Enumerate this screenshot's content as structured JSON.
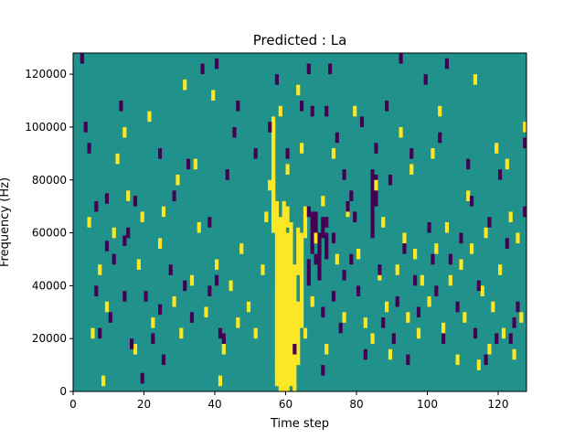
{
  "chart_data": {
    "type": "heatmap",
    "title": "Predicted : La",
    "xlabel": "Time step",
    "ylabel": "Frequency (Hz)",
    "xlim": [
      0,
      128
    ],
    "ylim": [
      0,
      128000
    ],
    "cols": 128,
    "rows": 128,
    "row_height_hz": 1000,
    "grid": false,
    "legend": "none",
    "x_ticks": [
      0,
      20,
      40,
      60,
      80,
      100,
      120
    ],
    "y_ticks": [
      0,
      20000,
      40000,
      60000,
      80000,
      100000,
      120000
    ],
    "palette": {
      "background": "#21918c",
      "low": "#440154",
      "high": "#fde725"
    },
    "cell_levels": "background = middle value, low = minimum, high = maximum",
    "low_cells": [
      [
        2,
        124
      ],
      [
        3,
        98
      ],
      [
        4,
        90
      ],
      [
        6,
        68
      ],
      [
        6,
        36
      ],
      [
        7,
        20
      ],
      [
        9,
        71
      ],
      [
        9,
        53
      ],
      [
        10,
        26
      ],
      [
        11,
        48
      ],
      [
        13,
        106
      ],
      [
        14,
        55
      ],
      [
        14,
        34
      ],
      [
        15,
        58
      ],
      [
        16,
        16
      ],
      [
        17,
        70
      ],
      [
        19,
        3
      ],
      [
        20,
        34
      ],
      [
        22,
        18
      ],
      [
        24,
        88
      ],
      [
        24,
        29
      ],
      [
        25,
        10
      ],
      [
        27,
        44
      ],
      [
        28,
        72
      ],
      [
        31,
        38
      ],
      [
        32,
        84
      ],
      [
        33,
        26
      ],
      [
        36,
        120
      ],
      [
        38,
        62
      ],
      [
        38,
        36
      ],
      [
        40,
        122
      ],
      [
        40,
        40
      ],
      [
        41,
        20
      ],
      [
        42,
        18
      ],
      [
        43,
        80
      ],
      [
        45,
        96
      ],
      [
        46,
        106
      ],
      [
        51,
        88
      ],
      [
        55,
        98
      ],
      [
        57,
        116
      ],
      [
        60,
        88
      ],
      [
        62,
        14
      ],
      [
        64,
        106
      ],
      [
        66,
        120
      ],
      [
        66,
        66
      ],
      [
        67,
        104
      ],
      [
        68,
        48
      ],
      [
        69,
        56
      ],
      [
        70,
        6
      ],
      [
        70,
        28
      ],
      [
        71,
        62
      ],
      [
        71,
        104
      ],
      [
        72,
        120
      ],
      [
        73,
        56
      ],
      [
        73,
        34
      ],
      [
        74,
        94
      ],
      [
        75,
        22
      ],
      [
        76,
        80
      ],
      [
        76,
        42
      ],
      [
        77,
        68
      ],
      [
        78,
        72
      ],
      [
        78,
        48
      ],
      [
        79,
        64
      ],
      [
        80,
        36
      ],
      [
        81,
        100
      ],
      [
        82,
        12
      ],
      [
        84,
        58
      ],
      [
        85,
        90
      ],
      [
        86,
        44
      ],
      [
        87,
        24
      ],
      [
        88,
        106
      ],
      [
        89,
        78
      ],
      [
        90,
        18
      ],
      [
        91,
        32
      ],
      [
        92,
        124
      ],
      [
        93,
        52
      ],
      [
        94,
        10
      ],
      [
        95,
        88
      ],
      [
        96,
        40
      ],
      [
        97,
        28
      ],
      [
        99,
        116
      ],
      [
        100,
        60
      ],
      [
        101,
        48
      ],
      [
        102,
        36
      ],
      [
        103,
        94
      ],
      [
        104,
        18
      ],
      [
        105,
        122
      ],
      [
        106,
        48
      ],
      [
        108,
        30
      ],
      [
        109,
        56
      ],
      [
        111,
        84
      ],
      [
        112,
        70
      ],
      [
        113,
        20
      ],
      [
        114,
        38
      ],
      [
        116,
        10
      ],
      [
        117,
        62
      ],
      [
        119,
        18
      ],
      [
        120,
        80
      ],
      [
        122,
        54
      ],
      [
        123,
        18
      ],
      [
        124,
        24
      ],
      [
        125,
        30
      ],
      [
        127,
        92
      ],
      [
        127,
        66
      ]
    ],
    "high_cells": [
      [
        4,
        62
      ],
      [
        5,
        20
      ],
      [
        7,
        44
      ],
      [
        8,
        2
      ],
      [
        9,
        30
      ],
      [
        11,
        58
      ],
      [
        12,
        86
      ],
      [
        14,
        96
      ],
      [
        15,
        72
      ],
      [
        17,
        14
      ],
      [
        18,
        46
      ],
      [
        19,
        64
      ],
      [
        21,
        102
      ],
      [
        22,
        24
      ],
      [
        24,
        54
      ],
      [
        25,
        66
      ],
      [
        28,
        32
      ],
      [
        29,
        78
      ],
      [
        30,
        20
      ],
      [
        31,
        114
      ],
      [
        33,
        40
      ],
      [
        34,
        84
      ],
      [
        35,
        60
      ],
      [
        37,
        28
      ],
      [
        39,
        110
      ],
      [
        40,
        46
      ],
      [
        41,
        2
      ],
      [
        42,
        14
      ],
      [
        44,
        38
      ],
      [
        46,
        24
      ],
      [
        47,
        52
      ],
      [
        49,
        30
      ],
      [
        51,
        20
      ],
      [
        53,
        44
      ],
      [
        54,
        64
      ],
      [
        55,
        76
      ],
      [
        57,
        8
      ],
      [
        58,
        104
      ],
      [
        60,
        82
      ],
      [
        61,
        40
      ],
      [
        63,
        112
      ],
      [
        64,
        90
      ],
      [
        65,
        20
      ],
      [
        67,
        32
      ],
      [
        68,
        56
      ],
      [
        70,
        70
      ],
      [
        71,
        14
      ],
      [
        73,
        88
      ],
      [
        74,
        48
      ],
      [
        76,
        26
      ],
      [
        77,
        66
      ],
      [
        79,
        104
      ],
      [
        80,
        50
      ],
      [
        82,
        24
      ],
      [
        84,
        18
      ],
      [
        85,
        76
      ],
      [
        86,
        42
      ],
      [
        87,
        62
      ],
      [
        88,
        30
      ],
      [
        89,
        12
      ],
      [
        91,
        44
      ],
      [
        92,
        96
      ],
      [
        93,
        56
      ],
      [
        94,
        26
      ],
      [
        95,
        82
      ],
      [
        96,
        50
      ],
      [
        97,
        20
      ],
      [
        98,
        40
      ],
      [
        100,
        32
      ],
      [
        101,
        88
      ],
      [
        102,
        52
      ],
      [
        103,
        104
      ],
      [
        104,
        22
      ],
      [
        105,
        60
      ],
      [
        106,
        40
      ],
      [
        108,
        10
      ],
      [
        109,
        46
      ],
      [
        110,
        26
      ],
      [
        111,
        72
      ],
      [
        112,
        52
      ],
      [
        113,
        116
      ],
      [
        114,
        8
      ],
      [
        115,
        36
      ],
      [
        116,
        58
      ],
      [
        117,
        14
      ],
      [
        118,
        30
      ],
      [
        119,
        90
      ],
      [
        120,
        44
      ],
      [
        121,
        20
      ],
      [
        122,
        84
      ],
      [
        123,
        64
      ],
      [
        124,
        12
      ],
      [
        125,
        56
      ],
      [
        126,
        26
      ],
      [
        127,
        98
      ]
    ],
    "high_bands": [
      [
        56,
        60,
        44
      ],
      [
        56,
        64,
        38
      ],
      [
        57,
        2,
        70
      ],
      [
        57,
        4,
        34
      ],
      [
        58,
        0,
        66
      ],
      [
        58,
        6,
        40
      ],
      [
        59,
        0,
        72
      ],
      [
        59,
        30,
        38
      ],
      [
        60,
        0,
        60
      ],
      [
        60,
        62,
        8
      ],
      [
        61,
        2,
        62
      ],
      [
        62,
        0,
        48
      ],
      [
        63,
        10,
        24
      ],
      [
        63,
        44,
        18
      ],
      [
        64,
        24,
        36
      ],
      [
        65,
        58,
        12
      ]
    ],
    "low_bands": [
      [
        66,
        40,
        10
      ],
      [
        67,
        52,
        16
      ],
      [
        68,
        60,
        8
      ],
      [
        69,
        42,
        14
      ],
      [
        70,
        58,
        8
      ],
      [
        71,
        50,
        10
      ],
      [
        84,
        60,
        24
      ],
      [
        85,
        70,
        12
      ]
    ]
  }
}
